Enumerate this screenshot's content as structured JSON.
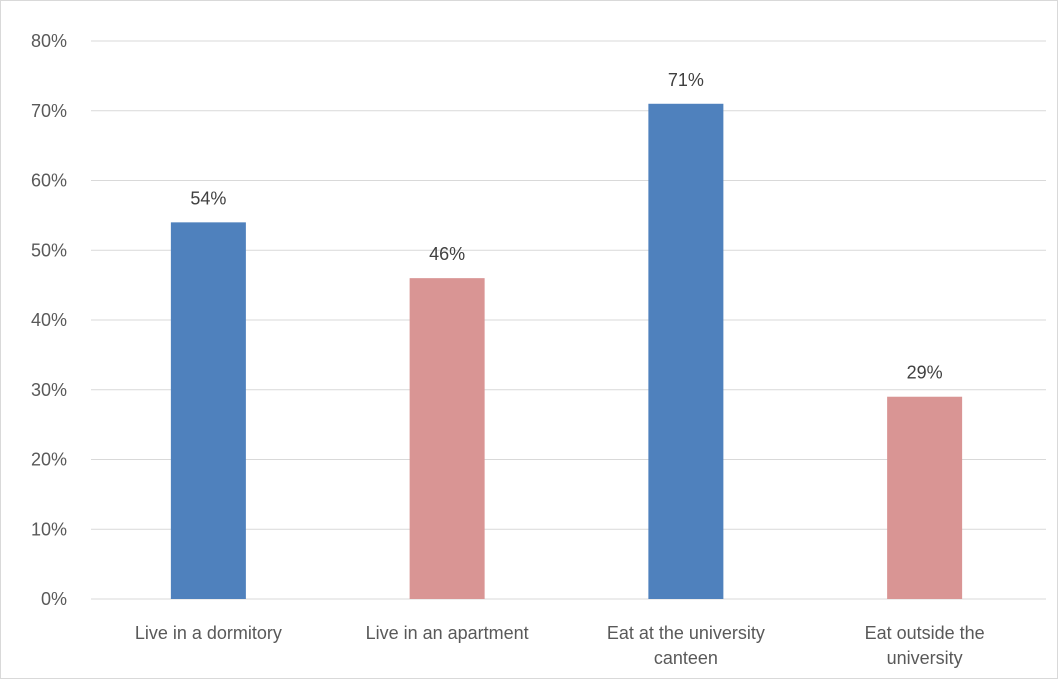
{
  "chart_data": {
    "type": "bar",
    "categories": [
      [
        "Live in a dormitory"
      ],
      [
        "Live in an apartment"
      ],
      [
        "Eat at the university",
        "canteen"
      ],
      [
        "Eat outside the",
        "university"
      ]
    ],
    "values": [
      54,
      46,
      71,
      29
    ],
    "data_labels": [
      "54%",
      "46%",
      "71%",
      "29%"
    ],
    "bar_colors": [
      "#4f81bd",
      "#d99594",
      "#4f81bd",
      "#d99594"
    ],
    "ylim": [
      0,
      80
    ],
    "y_ticks": [
      0,
      10,
      20,
      30,
      40,
      50,
      60,
      70,
      80
    ],
    "y_tick_labels": [
      "0%",
      "10%",
      "20%",
      "30%",
      "40%",
      "50%",
      "60%",
      "70%",
      "80%"
    ],
    "grid": true,
    "legend": "none"
  },
  "colors": {
    "gridline": "#d9d9d9",
    "axis_text": "#595959",
    "label_text": "#404040"
  }
}
